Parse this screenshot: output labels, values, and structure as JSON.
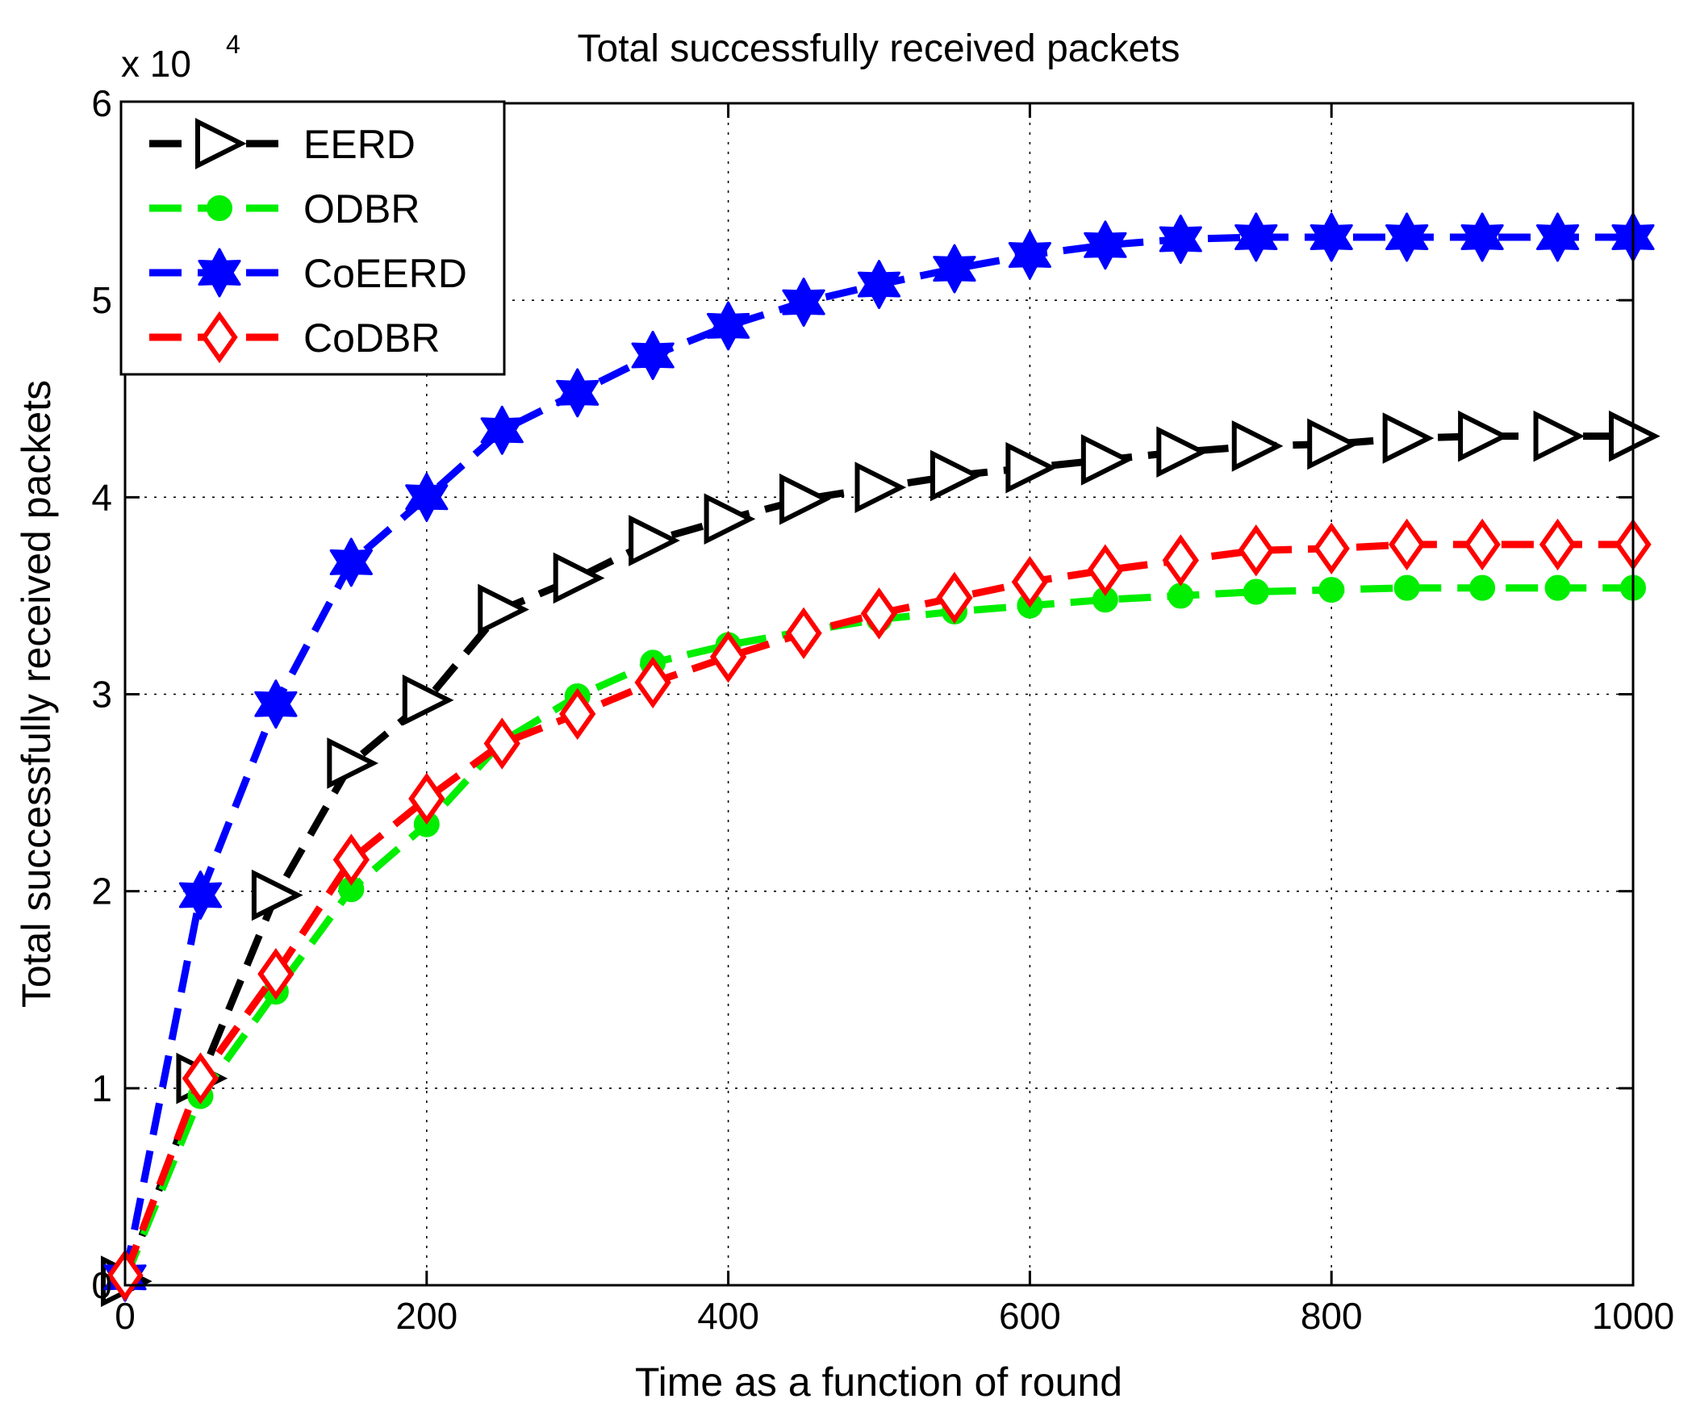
{
  "chart_data": {
    "type": "line",
    "title": "Total successfully received packets",
    "xlabel": "Time as a function of round",
    "ylabel": "Total successfully received packets",
    "y_exponent_label": "x 10",
    "y_exponent_power": "4",
    "xlim": [
      0,
      1000
    ],
    "ylim": [
      0,
      6
    ],
    "grid": true,
    "legend_position": "top-left",
    "x_ticks": [
      "0",
      "200",
      "400",
      "600",
      "800",
      "1000"
    ],
    "y_ticks": [
      "0",
      "1",
      "2",
      "3",
      "4",
      "5",
      "6"
    ],
    "x": [
      0,
      50,
      100,
      150,
      200,
      250,
      300,
      350,
      400,
      450,
      500,
      550,
      600,
      650,
      700,
      750,
      800,
      850,
      900,
      950,
      1000
    ],
    "series": [
      {
        "name": "EERD",
        "color": "#000000",
        "marker": "triangle-right",
        "values": [
          0.02,
          1.05,
          1.98,
          2.65,
          2.97,
          3.43,
          3.59,
          3.78,
          3.89,
          3.99,
          4.05,
          4.11,
          4.15,
          4.19,
          4.23,
          4.26,
          4.27,
          4.3,
          4.31,
          4.31,
          4.31
        ]
      },
      {
        "name": "ODBR",
        "color": "#00ee00",
        "marker": "circle",
        "values": [
          0.03,
          0.96,
          1.49,
          2.01,
          2.34,
          2.76,
          2.99,
          3.16,
          3.25,
          3.32,
          3.38,
          3.42,
          3.45,
          3.48,
          3.5,
          3.52,
          3.53,
          3.54,
          3.54,
          3.54,
          3.54
        ]
      },
      {
        "name": "CoEERD",
        "color": "#0000ff",
        "marker": "star",
        "values": [
          0.04,
          1.98,
          2.95,
          3.67,
          4.0,
          4.34,
          4.53,
          4.72,
          4.87,
          4.99,
          5.08,
          5.16,
          5.23,
          5.28,
          5.31,
          5.32,
          5.32,
          5.32,
          5.32,
          5.32,
          5.32
        ]
      },
      {
        "name": "CoDBR",
        "color": "#ff0000",
        "marker": "diamond",
        "values": [
          0.05,
          1.05,
          1.58,
          2.16,
          2.47,
          2.75,
          2.9,
          3.06,
          3.19,
          3.31,
          3.41,
          3.49,
          3.57,
          3.63,
          3.68,
          3.73,
          3.74,
          3.76,
          3.76,
          3.76,
          3.76
        ]
      }
    ]
  }
}
